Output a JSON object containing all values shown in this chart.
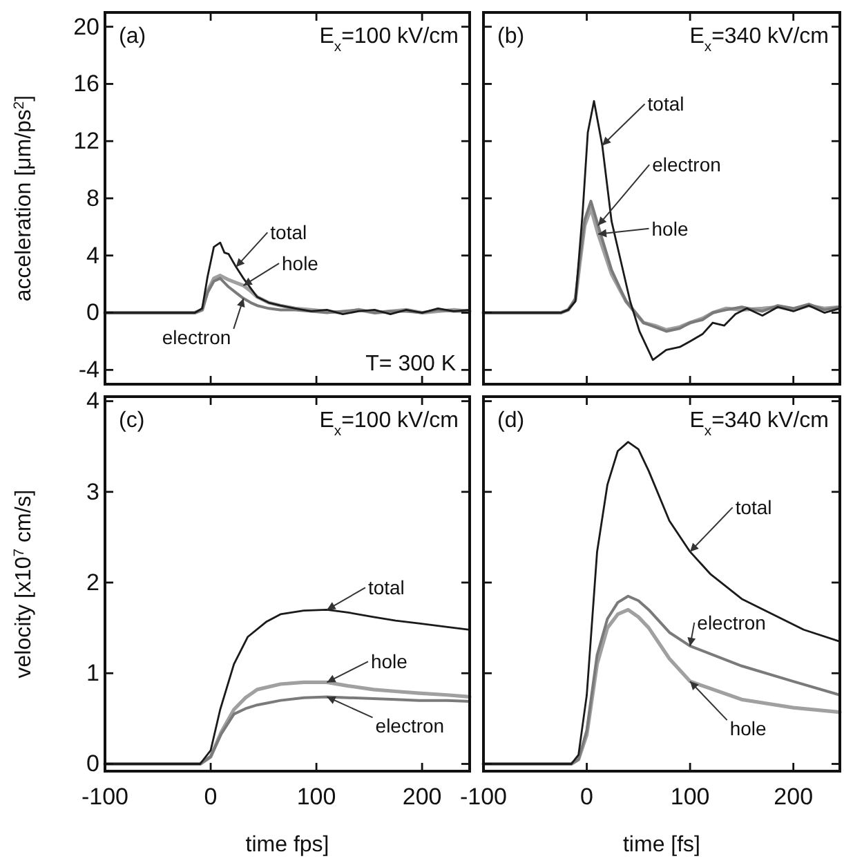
{
  "chart_data": [
    {
      "type": "line",
      "title": "(a)",
      "subtitle": "E$_{x}$=100 kV/cm",
      "ylabel": "acceleration [μm/ps$^{2}$]",
      "xlim": [
        -100,
        245
      ],
      "xticks": [
        -100,
        0,
        100,
        200
      ],
      "ylim": [
        -5,
        21
      ],
      "yticks": [
        -4,
        0,
        4,
        8,
        12,
        16,
        20
      ],
      "tick_labels": "y",
      "grid": false,
      "series": [
        {
          "color": "#a0a0a0",
          "x": [
            -100,
            -15,
            -8,
            -3,
            3,
            9,
            17,
            24,
            31,
            38,
            44,
            55,
            66,
            80,
            95,
            110,
            125,
            140,
            155,
            170,
            185,
            200,
            215,
            230,
            245
          ],
          "values": [
            0,
            0,
            0.2,
            1.5,
            2.4,
            2.6,
            2.3,
            2.1,
            1.9,
            1.5,
            1.1,
            0.7,
            0.5,
            0.3,
            0.2,
            0.1,
            0,
            0.2,
            0,
            0.1,
            0.2,
            0,
            0.1,
            0.2,
            0.1
          ]
        },
        {
          "color": "#7a7a7a",
          "x": [
            -100,
            -15,
            -8,
            -3,
            3,
            9,
            17,
            24,
            31,
            38,
            44,
            55,
            66,
            80,
            95,
            110,
            125,
            140,
            155,
            170,
            185,
            200,
            215,
            230,
            245
          ],
          "values": [
            0,
            0,
            0.2,
            1.4,
            2.2,
            2.4,
            1.8,
            1.4,
            1.0,
            0.7,
            0.5,
            0.3,
            0.2,
            0.2,
            0.1,
            0,
            0.1,
            0.2,
            0,
            0.1,
            0.1,
            0,
            0.2,
            0.1,
            0.1
          ]
        },
        {
          "color": "#1a1a1a",
          "x": [
            -100,
            -15,
            -8,
            -3,
            3,
            9,
            13,
            17,
            24,
            31,
            38,
            44,
            55,
            66,
            80,
            95,
            110,
            125,
            140,
            155,
            170,
            185,
            200,
            215,
            230,
            245
          ],
          "values": [
            0,
            0,
            0.3,
            2.5,
            4.6,
            4.9,
            4.2,
            4.1,
            3.2,
            2.4,
            1.7,
            1.1,
            0.7,
            0.5,
            0.3,
            0.1,
            0.2,
            -0.1,
            0.1,
            0.2,
            -0.1,
            0.2,
            0,
            0.3,
            0.1,
            0.2
          ]
        }
      ],
      "annotations": [
        "T= 300 K",
        {
          "text": "total",
          "x": 24,
          "y": 3.2
        },
        {
          "text": "hole",
          "x": 31,
          "y": 1.9
        },
        {
          "text": "electron",
          "x": 31,
          "y": 1.0
        }
      ]
    },
    {
      "type": "line",
      "title": "(b)",
      "subtitle": "E$_{x}$=340 kV/cm",
      "xlim": [
        -100,
        245
      ],
      "xticks": [
        -100,
        0,
        100,
        200
      ],
      "ylim": [
        -5,
        21
      ],
      "yticks": [
        -4,
        0,
        4,
        8,
        12,
        16,
        20
      ],
      "tick_labels": false,
      "grid": false,
      "series": [
        {
          "color": "#a0a0a0",
          "x": [
            -100,
            -25,
            -18,
            -11,
            -7,
            -2,
            4,
            11,
            24,
            38,
            55,
            66,
            77,
            90,
            100,
            112,
            122,
            135,
            150,
            170,
            185,
            200,
            215,
            230,
            245
          ],
          "values": [
            0,
            0,
            0.2,
            0.9,
            3.3,
            6.1,
            7.3,
            5.5,
            2.7,
            0.8,
            -0.7,
            -0.9,
            -1.2,
            -1.0,
            -0.7,
            -0.4,
            0,
            0.3,
            0.2,
            0.3,
            0.4,
            0.2,
            0.5,
            0.3,
            0.4
          ]
        },
        {
          "color": "#7a7a7a",
          "x": [
            -100,
            -25,
            -18,
            -11,
            -7,
            -2,
            4,
            11,
            24,
            38,
            55,
            66,
            77,
            90,
            100,
            112,
            122,
            135,
            150,
            170,
            185,
            200,
            215,
            230,
            245
          ],
          "values": [
            0,
            0,
            0.2,
            1.0,
            3.6,
            6.5,
            7.8,
            6.1,
            3.0,
            0.8,
            -0.7,
            -1.0,
            -1.3,
            -1.1,
            -0.7,
            -0.5,
            0,
            0.2,
            0.4,
            0.1,
            0.5,
            0.3,
            0.6,
            0.2,
            0.4
          ]
        },
        {
          "color": "#1a1a1a",
          "x": [
            -100,
            -25,
            -18,
            -11,
            -4,
            1,
            7,
            15,
            24,
            33,
            42,
            51,
            64,
            77,
            90,
            100,
            112,
            122,
            133,
            144,
            155,
            170,
            185,
            200,
            215,
            230,
            245
          ],
          "values": [
            0,
            0,
            0.2,
            0.8,
            7,
            12.6,
            14.8,
            11.7,
            6.4,
            3.6,
            0.8,
            -1.3,
            -3.3,
            -2.6,
            -2.4,
            -2,
            -1.5,
            -0.7,
            -0.9,
            -0.1,
            0.3,
            -0.2,
            0.4,
            0.1,
            0.5,
            0,
            0.3
          ]
        }
      ],
      "annotations": [
        {
          "text": "total",
          "x": 15,
          "y": 11.7
        },
        {
          "text": "electron",
          "x": 11,
          "y": 6.1
        },
        {
          "text": "hole",
          "x": 11,
          "y": 5.5
        }
      ]
    },
    {
      "type": "line",
      "title": "(c)",
      "subtitle": "E$_{x}$=100 kV/cm",
      "xlabel": "time fps]",
      "ylabel": "velocity [x10$^{7}$ cm/s]",
      "xlim": [
        -100,
        245
      ],
      "xticks": [
        -100,
        0,
        100,
        200
      ],
      "ylim": [
        -0.08,
        4.05
      ],
      "yticks": [
        0,
        1,
        2,
        3,
        4
      ],
      "grid": false,
      "series": [
        {
          "color": "#a0a0a0",
          "x": [
            -100,
            -10,
            0,
            10,
            22,
            33,
            44,
            66,
            88,
            110,
            130,
            154,
            175,
            197,
            224,
            245
          ],
          "values": [
            0,
            0,
            0.08,
            0.35,
            0.6,
            0.73,
            0.82,
            0.88,
            0.9,
            0.9,
            0.86,
            0.82,
            0.8,
            0.78,
            0.76,
            0.74
          ]
        },
        {
          "color": "#7a7a7a",
          "x": [
            -100,
            -10,
            0,
            10,
            22,
            33,
            44,
            66,
            88,
            110,
            130,
            154,
            175,
            197,
            224,
            245
          ],
          "values": [
            0,
            0,
            0.08,
            0.33,
            0.55,
            0.61,
            0.65,
            0.7,
            0.73,
            0.74,
            0.73,
            0.72,
            0.71,
            0.7,
            0.7,
            0.69
          ]
        },
        {
          "color": "#1a1a1a",
          "x": [
            -100,
            -10,
            0,
            9,
            22,
            35,
            53,
            66,
            88,
            110,
            130,
            154,
            175,
            197,
            224,
            245
          ],
          "values": [
            0,
            0,
            0.15,
            0.6,
            1.1,
            1.4,
            1.57,
            1.65,
            1.69,
            1.7,
            1.67,
            1.62,
            1.58,
            1.55,
            1.51,
            1.48
          ]
        }
      ],
      "annotations": [
        {
          "text": "total",
          "x": 110,
          "y": 1.7
        },
        {
          "text": "hole",
          "x": 110,
          "y": 0.9
        },
        {
          "text": "electron",
          "x": 110,
          "y": 0.74
        }
      ]
    },
    {
      "type": "line",
      "title": "(d)",
      "subtitle": "E$_{x}$=340 kV/cm",
      "xlabel": "time [fs]",
      "xlim": [
        -100,
        245
      ],
      "xticks": [
        -100,
        0,
        100,
        200
      ],
      "ylim": [
        -0.08,
        4.05
      ],
      "yticks": [
        0,
        1,
        2,
        3,
        4
      ],
      "tick_labels": "x",
      "grid": false,
      "series": [
        {
          "color": "#a0a0a0",
          "x": [
            -100,
            -15,
            -8,
            0,
            10,
            20,
            30,
            40,
            50,
            60,
            80,
            100,
            150,
            200,
            245
          ],
          "values": [
            0,
            0,
            0.05,
            0.32,
            1.1,
            1.5,
            1.65,
            1.7,
            1.62,
            1.5,
            1.16,
            0.91,
            0.71,
            0.62,
            0.57
          ]
        },
        {
          "color": "#7a7a7a",
          "x": [
            -100,
            -15,
            -8,
            0,
            10,
            20,
            30,
            40,
            50,
            60,
            80,
            100,
            150,
            200,
            245
          ],
          "values": [
            0,
            0,
            0.05,
            0.37,
            1.2,
            1.6,
            1.78,
            1.85,
            1.8,
            1.7,
            1.45,
            1.3,
            1.08,
            0.91,
            0.76
          ]
        },
        {
          "color": "#1a1a1a",
          "x": [
            -100,
            -15,
            -8,
            0,
            10,
            20,
            30,
            40,
            50,
            60,
            80,
            100,
            120,
            150,
            180,
            210,
            245
          ],
          "values": [
            0,
            0,
            0.1,
            0.76,
            2.34,
            3.08,
            3.45,
            3.55,
            3.47,
            3.23,
            2.68,
            2.34,
            2.09,
            1.82,
            1.65,
            1.48,
            1.35
          ]
        }
      ],
      "annotations": [
        {
          "text": "total",
          "x": 100,
          "y": 2.34
        },
        {
          "text": "electron",
          "x": 100,
          "y": 1.3
        },
        {
          "text": "hole",
          "x": 100,
          "y": 0.91
        }
      ]
    }
  ]
}
